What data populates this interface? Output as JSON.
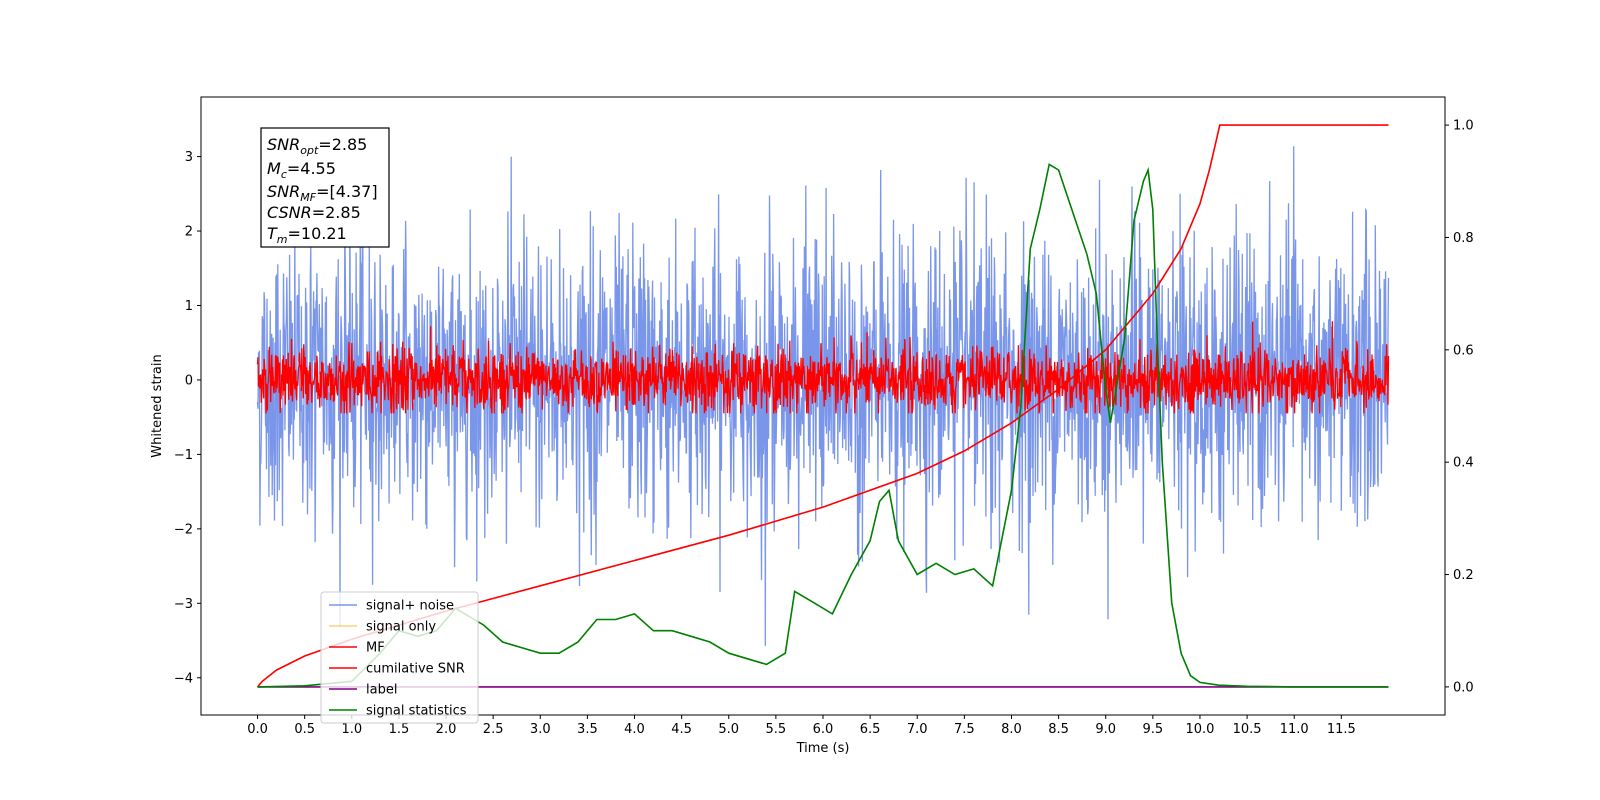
{
  "chart_data": {
    "type": "line",
    "title": "",
    "xlabel": "Time (s)",
    "ylabel": "Whitened strain",
    "xlim": [
      -0.6,
      12.6
    ],
    "ylim_left": [
      -4.5,
      3.8
    ],
    "ylim_right": [
      -0.05,
      1.05
    ],
    "grid": false,
    "legend_position": "lower-left",
    "x_ticks": [
      "0.0",
      "0.5",
      "1.0",
      "1.5",
      "2.0",
      "2.5",
      "3.0",
      "3.5",
      "4.0",
      "4.5",
      "5.0",
      "5.5",
      "6.0",
      "6.5",
      "7.0",
      "7.5",
      "8.0",
      "8.5",
      "9.0",
      "9.5",
      "10.0",
      "10.5",
      "11.0",
      "11.5"
    ],
    "y_ticks_left": [
      "3",
      "2",
      "1",
      "0",
      "−1",
      "−2",
      "−3",
      "−4"
    ],
    "y_ticks_right": [
      "1.0",
      "0.8",
      "0.6",
      "0.4",
      "0.2",
      "0.0"
    ],
    "annotation": {
      "snr_opt": {
        "label": "SNR",
        "sub": "opt",
        "value": "=2.85"
      },
      "mc": {
        "label": "M",
        "sub": "c",
        "value": "=4.55"
      },
      "snr_mf": {
        "label": "SNR",
        "sub": "MF",
        "value": "=[4.37]"
      },
      "csnr": {
        "label": "CSNR",
        "sub": "",
        "value": "=2.85"
      },
      "tm": {
        "label": "T",
        "sub": "m",
        "value": "=10.21"
      }
    },
    "series": [
      {
        "name": "signal+ noise",
        "color": "#4169e1",
        "axis": "left",
        "description_values": {
          "amplitude_std": 0.95,
          "range": [
            -4.15,
            3.45
          ]
        }
      },
      {
        "name": "signal only",
        "color": "#ffa500",
        "axis": "left",
        "values": []
      },
      {
        "name": "MF",
        "color": "#ff0000",
        "axis": "left",
        "description_values": {
          "amplitude_std": 0.22,
          "range": [
            -0.45,
            0.98
          ]
        }
      },
      {
        "name": "cumilative SNR",
        "color": "#ff0000",
        "axis": "right",
        "x": [
          0.0,
          0.05,
          0.2,
          0.5,
          1.0,
          1.5,
          2.0,
          3.0,
          4.0,
          5.0,
          6.0,
          7.0,
          7.5,
          8.0,
          8.5,
          9.0,
          9.5,
          9.8,
          10.0,
          10.1,
          10.21,
          10.5,
          11.0,
          11.5,
          12.0
        ],
        "values": [
          0.0,
          0.01,
          0.03,
          0.055,
          0.085,
          0.11,
          0.135,
          0.18,
          0.225,
          0.27,
          0.32,
          0.38,
          0.42,
          0.47,
          0.53,
          0.6,
          0.7,
          0.78,
          0.86,
          0.92,
          1.0,
          1.0,
          1.0,
          1.0,
          1.0
        ]
      },
      {
        "name": "label",
        "color": "#800080",
        "axis": "right",
        "x": [
          0.0,
          12.0
        ],
        "values": [
          0.0,
          0.0
        ]
      },
      {
        "name": "signal statistics",
        "color": "#008000",
        "axis": "right",
        "x": [
          0.0,
          0.5,
          1.0,
          1.3,
          1.5,
          1.7,
          1.9,
          2.1,
          2.2,
          2.4,
          2.6,
          2.8,
          3.0,
          3.2,
          3.4,
          3.6,
          3.8,
          4.0,
          4.2,
          4.4,
          4.6,
          4.8,
          5.0,
          5.2,
          5.4,
          5.6,
          5.7,
          5.9,
          6.1,
          6.3,
          6.5,
          6.6,
          6.7,
          6.8,
          7.0,
          7.2,
          7.4,
          7.6,
          7.8,
          8.0,
          8.1,
          8.2,
          8.3,
          8.4,
          8.5,
          8.6,
          8.8,
          8.9,
          9.0,
          9.05,
          9.1,
          9.2,
          9.3,
          9.4,
          9.45,
          9.5,
          9.55,
          9.6,
          9.7,
          9.8,
          9.9,
          10.0,
          10.2,
          10.5,
          11.0,
          12.0
        ],
        "values": [
          0.0,
          0.002,
          0.01,
          0.06,
          0.1,
          0.09,
          0.1,
          0.14,
          0.13,
          0.11,
          0.08,
          0.07,
          0.06,
          0.06,
          0.08,
          0.12,
          0.12,
          0.13,
          0.1,
          0.1,
          0.09,
          0.08,
          0.06,
          0.05,
          0.04,
          0.06,
          0.17,
          0.15,
          0.13,
          0.2,
          0.26,
          0.33,
          0.35,
          0.26,
          0.2,
          0.22,
          0.2,
          0.21,
          0.18,
          0.35,
          0.5,
          0.78,
          0.85,
          0.93,
          0.92,
          0.87,
          0.77,
          0.7,
          0.53,
          0.47,
          0.52,
          0.62,
          0.83,
          0.9,
          0.92,
          0.85,
          0.6,
          0.4,
          0.15,
          0.06,
          0.02,
          0.008,
          0.003,
          0.001,
          0.0,
          0.0
        ]
      }
    ]
  }
}
